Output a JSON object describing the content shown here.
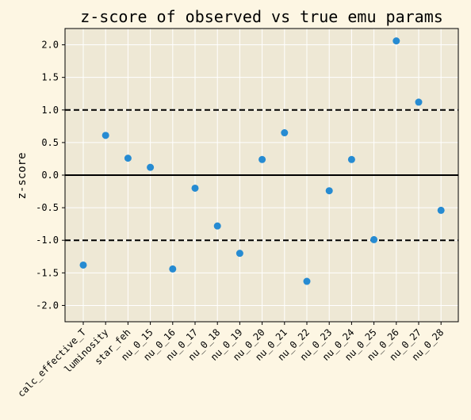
{
  "chart_data": {
    "type": "scatter",
    "title": "z-score of observed vs true emu params",
    "xlabel": "",
    "ylabel": "z-score",
    "ylim": [
      -2.25,
      2.25
    ],
    "yticks": [
      "-2.0",
      "-1.5",
      "-1.0",
      "-0.5",
      "0.0",
      "0.5",
      "1.0",
      "1.5",
      "2.0"
    ],
    "grid": true,
    "categories": [
      "calc_effective_T",
      "luminosity",
      "star_feh",
      "nu_0_15",
      "nu_0_16",
      "nu_0_17",
      "nu_0_18",
      "nu_0_19",
      "nu_0_20",
      "nu_0_21",
      "nu_0_22",
      "nu_0_23",
      "nu_0_24",
      "nu_0_25",
      "nu_0_26",
      "nu_0_27",
      "nu_0_28"
    ],
    "values": [
      -1.38,
      0.61,
      0.26,
      0.12,
      -1.44,
      -0.2,
      -0.78,
      -1.2,
      0.24,
      0.65,
      -1.63,
      -0.24,
      0.24,
      -0.99,
      2.06,
      1.12,
      -0.54
    ],
    "reference_lines": [
      {
        "y": 1.0,
        "style": "dashed"
      },
      {
        "y": 0.0,
        "style": "solid"
      },
      {
        "y": -1.0,
        "style": "dashed"
      }
    ],
    "colors": {
      "background": "#fdf6e3",
      "plot_area": "#eee8d5",
      "point": "#268bd2",
      "line": "#000000",
      "grid": "#ffffff"
    }
  }
}
